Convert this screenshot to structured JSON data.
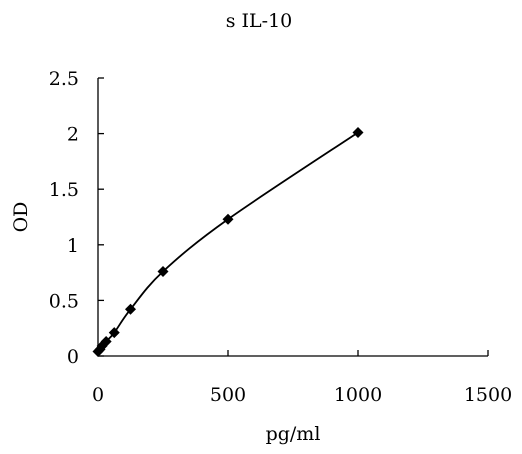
{
  "chart_data": {
    "type": "scatter",
    "title": "s IL-10",
    "xlabel": "pg/ml",
    "ylabel": "OD",
    "xlim": [
      0,
      1500
    ],
    "ylim": [
      0,
      2.5
    ],
    "x_ticks": [
      "0",
      "500",
      "1000",
      "1500"
    ],
    "y_ticks": [
      "0",
      "0.5",
      "1",
      "1.5",
      "2",
      "2.5"
    ],
    "grid": false,
    "legend": "none",
    "series": [
      {
        "marker": "diamond",
        "color": "#000000",
        "line": "smooth",
        "x": [
          0,
          7.8,
          15.6,
          31.2,
          62.5,
          125,
          250,
          500,
          1000
        ],
        "y": [
          0.04,
          0.06,
          0.09,
          0.13,
          0.21,
          0.42,
          0.76,
          1.23,
          2.01
        ]
      }
    ]
  }
}
